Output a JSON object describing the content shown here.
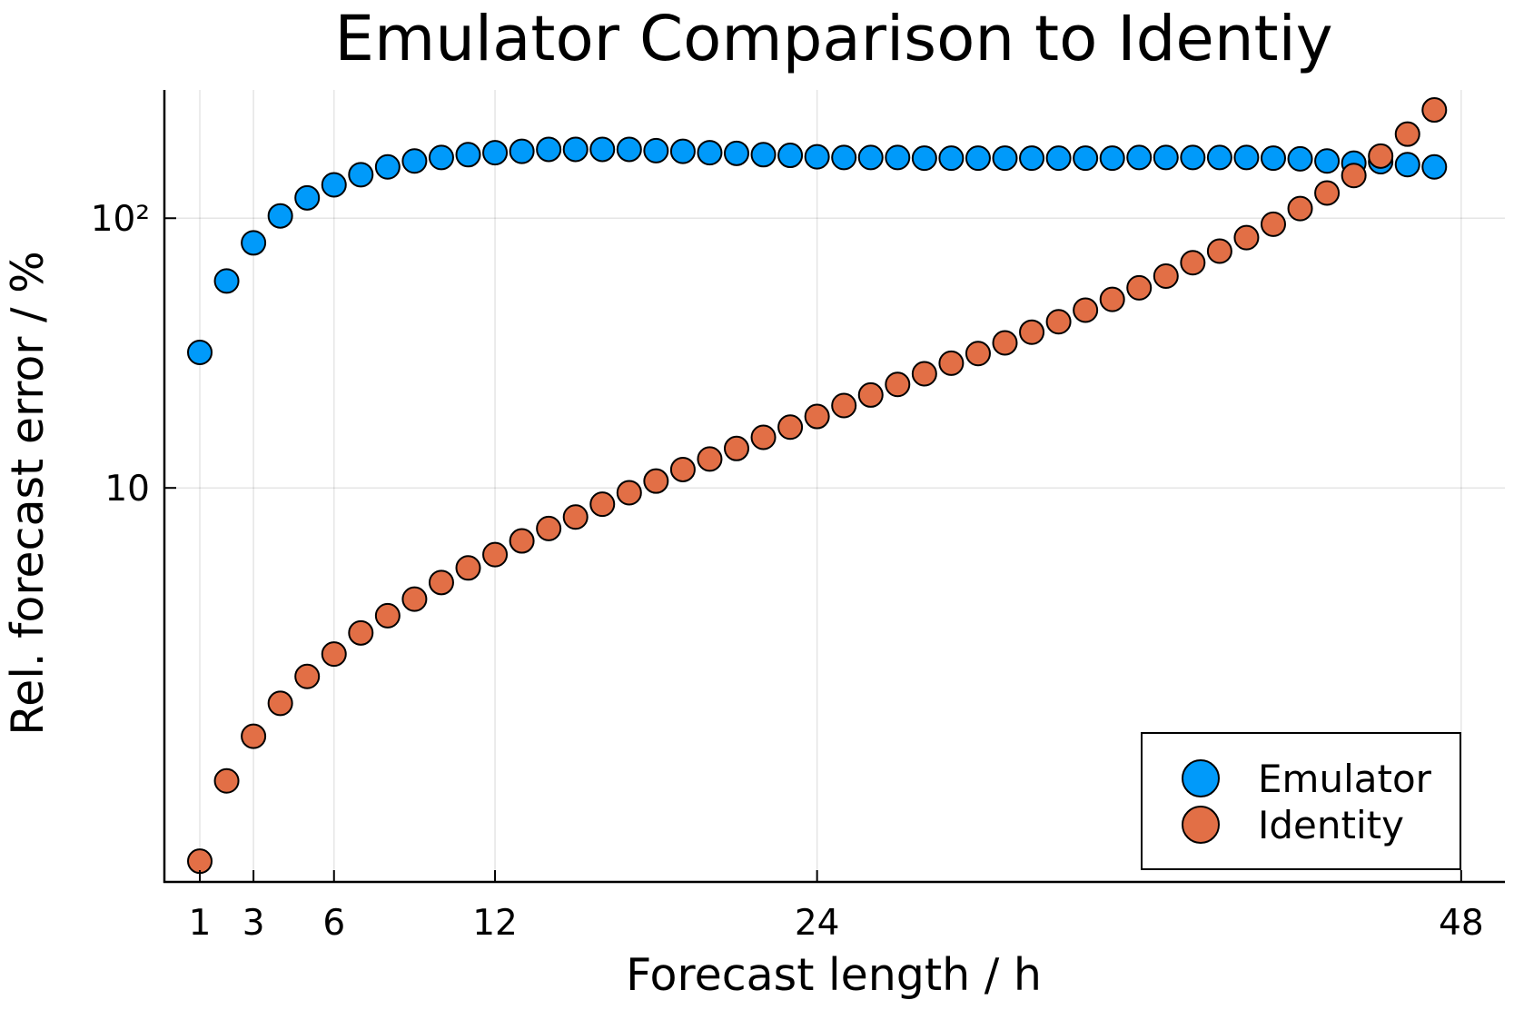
{
  "chart_data": {
    "type": "scatter",
    "title": "Emulator Comparison to Identiy",
    "xlabel": "Forecast length / h",
    "ylabel": "Rel. forecast error / %",
    "xscale": "linear",
    "yscale": "log",
    "xlim": [
      -0.32,
      49.63
    ],
    "ylim": [
      0.346,
      299
    ],
    "xticks": [
      1,
      3,
      6,
      12,
      24,
      48
    ],
    "xtick_labels": [
      "1",
      "3",
      "6",
      "12",
      "24",
      "48"
    ],
    "yticks": [
      10,
      100
    ],
    "ytick_labels": [
      "10",
      "10²"
    ],
    "grid": true,
    "legend_position": "bottom-right",
    "x": [
      1,
      2,
      3,
      4,
      5,
      6,
      7,
      8,
      9,
      10,
      11,
      12,
      13,
      14,
      15,
      16,
      17,
      18,
      19,
      20,
      21,
      22,
      23,
      24,
      25,
      26,
      27,
      28,
      29,
      30,
      31,
      32,
      33,
      34,
      35,
      36,
      37,
      38,
      39,
      40,
      41,
      42,
      43,
      44,
      45,
      46,
      47
    ],
    "series": [
      {
        "name": "Emulator",
        "color": "#009AFA",
        "values": [
          31.8,
          58.5,
          81,
          102,
          119,
          133,
          145,
          155,
          163,
          168,
          172,
          175,
          177,
          180,
          180,
          180,
          180,
          178,
          177,
          175,
          174,
          172,
          171,
          169,
          168,
          168,
          168,
          167,
          167,
          167,
          167,
          167,
          167,
          167,
          167,
          168,
          168,
          168,
          168,
          168,
          167,
          166,
          163,
          160,
          162,
          158,
          155
        ]
      },
      {
        "name": "Identity",
        "color": "#E26F46",
        "values": [
          0.413,
          0.82,
          1.2,
          1.59,
          2.0,
          2.42,
          2.9,
          3.36,
          3.87,
          4.46,
          5.05,
          5.66,
          6.36,
          7.07,
          7.8,
          8.7,
          9.6,
          10.6,
          11.7,
          12.8,
          14.0,
          15.4,
          16.8,
          18.4,
          20.2,
          22.1,
          24.2,
          26.5,
          29.0,
          31.5,
          34.5,
          37.8,
          41.3,
          45.6,
          50,
          55.2,
          61,
          68.4,
          75.5,
          84.7,
          95,
          108.6,
          124,
          144,
          170,
          205,
          252
        ]
      }
    ]
  }
}
